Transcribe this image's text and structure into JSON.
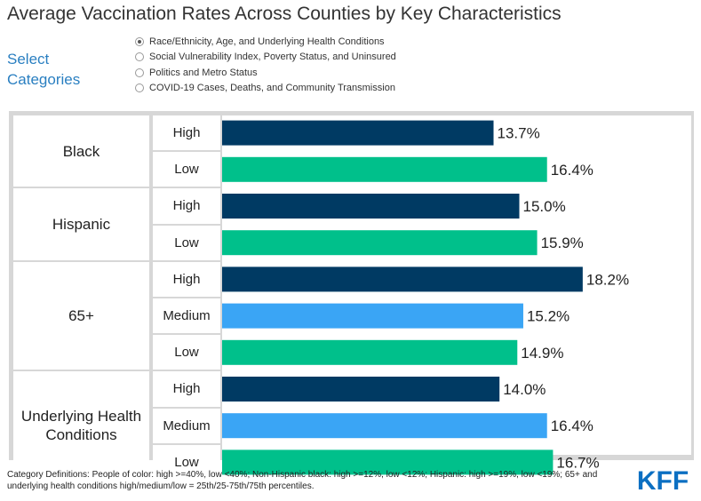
{
  "title": "Average Vaccination Rates Across Counties by Key Characteristics",
  "select_label": "Select Categories",
  "categories_selector": {
    "options": [
      "Race/Ethnicity, Age, and Underlying Health Conditions",
      "Social Vulnerability Index, Poverty Status, and Uninsured",
      "Politics and Metro Status",
      "COVID-19 Cases, Deaths, and Community Transmission"
    ],
    "selected_index": 0
  },
  "chart_data": {
    "type": "bar",
    "orientation": "horizontal",
    "value_format": "percent",
    "xlim": [
      0,
      20
    ],
    "groups": [
      {
        "name": "Black",
        "bars": [
          {
            "level": "High",
            "value": 13.7,
            "label": "13.7%"
          },
          {
            "level": "Low",
            "value": 16.4,
            "label": "16.4%"
          }
        ]
      },
      {
        "name": "Hispanic",
        "bars": [
          {
            "level": "High",
            "value": 15.0,
            "label": "15.0%"
          },
          {
            "level": "Low",
            "value": 15.9,
            "label": "15.9%"
          }
        ]
      },
      {
        "name": "65+",
        "bars": [
          {
            "level": "High",
            "value": 18.2,
            "label": "18.2%"
          },
          {
            "level": "Medium",
            "value": 15.2,
            "label": "15.2%"
          },
          {
            "level": "Low",
            "value": 14.9,
            "label": "14.9%"
          }
        ]
      },
      {
        "name": "Underlying Health Conditions",
        "bars": [
          {
            "level": "High",
            "value": 14.0,
            "label": "14.0%"
          },
          {
            "level": "Medium",
            "value": 16.4,
            "label": "16.4%"
          },
          {
            "level": "Low",
            "value": 16.7,
            "label": "16.7%"
          }
        ]
      }
    ],
    "level_colors": {
      "High": "#003a63",
      "Medium": "#3aa5f5",
      "Low": "#00c08b"
    }
  },
  "footnote": "Category Definitions: People of color: high >=40%, low <40%; Non-Hispanic black: high >=12%, low <12%; Hispanic: high >=19%, low <19%; 65+ and underlying health conditions high/medium/low = 25th/25-75th/75th percentiles.",
  "logo_text": "KFF",
  "logo_color": "#0b6fc2"
}
